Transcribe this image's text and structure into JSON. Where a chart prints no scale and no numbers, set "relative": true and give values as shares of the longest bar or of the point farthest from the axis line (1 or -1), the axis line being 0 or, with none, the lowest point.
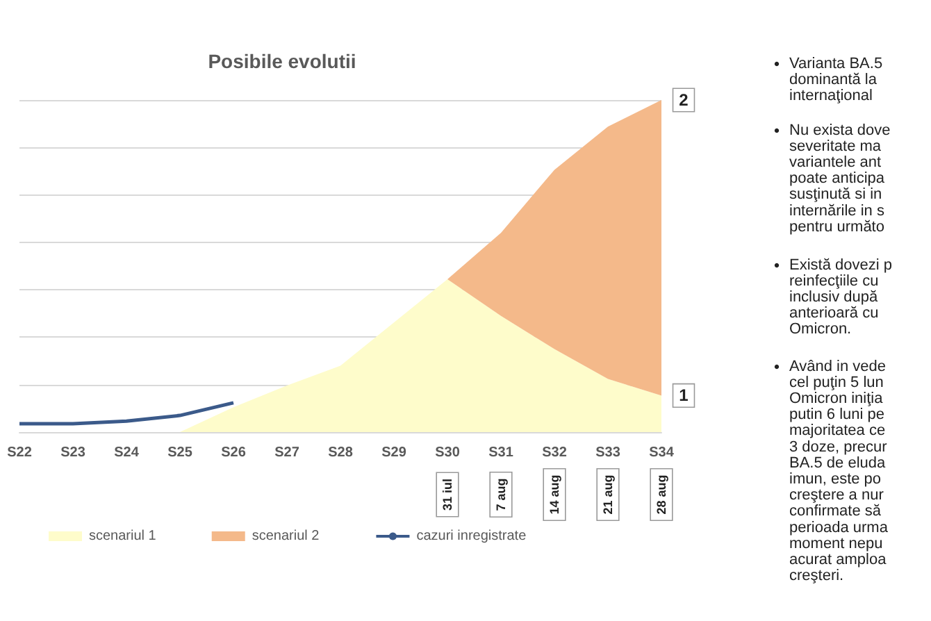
{
  "chart_data": {
    "type": "area",
    "title": "Posibile evolutii",
    "relative": true,
    "stacked": true,
    "grid": "y",
    "legend": "bottom",
    "categories": [
      "S22",
      "S23",
      "S24",
      "S25",
      "S26",
      "S27",
      "S28",
      "S29",
      "S30",
      "S31",
      "S32",
      "S33",
      "S34"
    ],
    "series": [
      {
        "name": "scenariul 1",
        "color": "#fefccb",
        "values": [
          null,
          null,
          null,
          0,
          0.075,
          0.14,
          0.2,
          0.33,
          0.46,
          0.35,
          0.25,
          0.16,
          0.11
        ]
      },
      {
        "name": "scenariul 2",
        "color": "#f4b98a",
        "values": [
          null,
          null,
          null,
          null,
          null,
          null,
          null,
          null,
          0,
          0.25,
          0.54,
          0.76,
          0.89
        ]
      },
      {
        "name": "cazuri inregistrate",
        "type": "line",
        "color": "#3b5a8a",
        "values": [
          0.025,
          0.025,
          0.033,
          0.05,
          0.088,
          null,
          null,
          null,
          null,
          null,
          null,
          null,
          null
        ]
      }
    ],
    "annotations": [
      "31 iul",
      "7 aug",
      "14 aug",
      "21 aug",
      "28 aug",
      {
        "text": "1",
        "x": "S34",
        "y": 0.11
      },
      {
        "text": "2",
        "x": "S34",
        "y": 1
      },
      "Varianta BA.5\ndominantă la\ninternaţional",
      "Nu exista dove\nseveritate ma\nvariantele ant\npoate anticipa\nsusţinută si in\ninternările in s\npentru următo",
      "Există dovezi p\nreinfecţiile cu\ninclusiv după\nanterioară cu\nOmicron.",
      "Având in vede\ncel puţin 5 lun\nOmicron iniţia\nputin 6 luni pe\nmajoritatea ce\n3 doze, precur\nBA.5 de eluda\nimun, este po\ncreştere a nur\nconfirmate să\nperioada urma\nmoment nepu\nacurat amploa\ncreşteri."
    ]
  }
}
